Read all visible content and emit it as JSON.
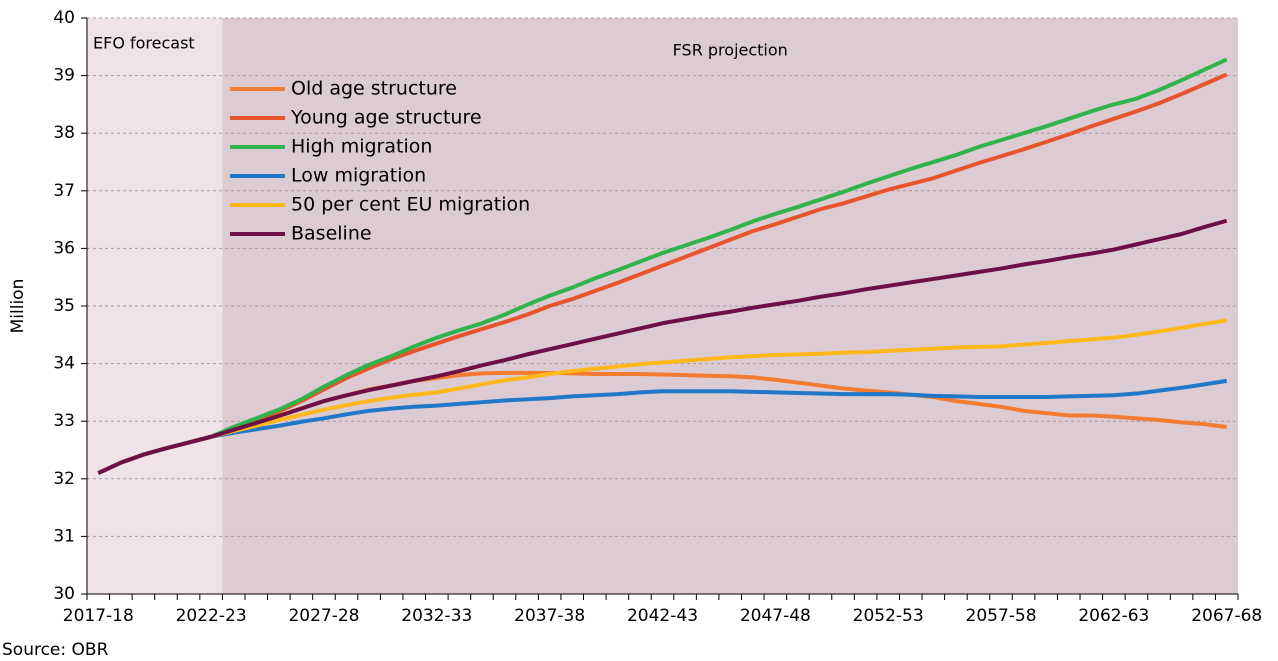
{
  "chart_data": {
    "type": "line",
    "y_label": "Million",
    "source": "Source: OBR",
    "regions": [
      {
        "label": "EFO forecast",
        "color": "#efe3e9"
      },
      {
        "label": "FSR projection",
        "color": "#dccbd3"
      }
    ],
    "categories": [
      "2017-18",
      null,
      null,
      null,
      null,
      "2022-23",
      null,
      null,
      null,
      null,
      "2027-28",
      null,
      null,
      null,
      null,
      "2032-33",
      null,
      null,
      null,
      null,
      "2037-38",
      null,
      null,
      null,
      null,
      "2042-43",
      null,
      null,
      null,
      null,
      "2047-48",
      null,
      null,
      null,
      null,
      "2052-53",
      null,
      null,
      null,
      null,
      "2057-58",
      null,
      null,
      null,
      null,
      "2062-63",
      null,
      null,
      null,
      null,
      "2067-68"
    ],
    "ylim": [
      30,
      40
    ],
    "yticks": [
      30,
      31,
      32,
      33,
      34,
      35,
      36,
      37,
      38,
      39,
      40
    ],
    "series": [
      {
        "name": "Old age structure",
        "color": "#f47c30",
        "values": [
          32.1,
          32.28,
          32.42,
          32.53,
          32.63,
          32.73,
          32.85,
          32.97,
          33.1,
          33.22,
          33.35,
          33.45,
          33.55,
          33.62,
          33.7,
          33.75,
          33.8,
          33.83,
          33.84,
          33.84,
          33.84,
          33.83,
          33.82,
          33.82,
          33.82,
          33.81,
          33.8,
          33.79,
          33.78,
          33.76,
          33.72,
          33.67,
          33.62,
          33.57,
          33.53,
          33.5,
          33.46,
          33.42,
          33.35,
          33.3,
          33.25,
          33.18,
          33.14,
          33.1,
          33.1,
          33.08,
          33.05,
          33.02,
          32.98,
          32.95,
          32.9
        ]
      },
      {
        "name": "Young age structure",
        "color": "#e8542c",
        "values": [
          32.1,
          32.28,
          32.42,
          32.53,
          32.63,
          32.73,
          32.88,
          33.02,
          33.17,
          33.35,
          33.55,
          33.75,
          33.92,
          34.08,
          34.22,
          34.35,
          34.48,
          34.6,
          34.72,
          34.85,
          35.0,
          35.12,
          35.26,
          35.4,
          35.55,
          35.7,
          35.85,
          36.0,
          36.15,
          36.3,
          36.42,
          36.55,
          36.68,
          36.78,
          36.9,
          37.02,
          37.12,
          37.22,
          37.35,
          37.48,
          37.6,
          37.72,
          37.85,
          37.98,
          38.12,
          38.25,
          38.38,
          38.52,
          38.68,
          38.85,
          39.02
        ]
      },
      {
        "name": "High migration",
        "color": "#2fb34a",
        "values": [
          32.1,
          32.28,
          32.42,
          32.53,
          32.63,
          32.73,
          32.9,
          33.05,
          33.2,
          33.38,
          33.6,
          33.8,
          33.98,
          34.13,
          34.3,
          34.45,
          34.58,
          34.7,
          34.85,
          35.02,
          35.18,
          35.32,
          35.48,
          35.62,
          35.77,
          35.92,
          36.05,
          36.18,
          36.32,
          36.47,
          36.6,
          36.72,
          36.85,
          36.98,
          37.12,
          37.25,
          37.38,
          37.5,
          37.62,
          37.76,
          37.88,
          38.0,
          38.12,
          38.25,
          38.38,
          38.5,
          38.6,
          38.75,
          38.92,
          39.1,
          39.28
        ]
      },
      {
        "name": "Low migration",
        "color": "#1f78c8",
        "values": [
          32.1,
          32.28,
          32.42,
          32.53,
          32.63,
          32.73,
          32.8,
          32.86,
          32.92,
          32.99,
          33.05,
          33.12,
          33.18,
          33.22,
          33.25,
          33.27,
          33.3,
          33.33,
          33.36,
          33.38,
          33.4,
          33.43,
          33.45,
          33.47,
          33.5,
          33.52,
          33.52,
          33.52,
          33.52,
          33.51,
          33.5,
          33.49,
          33.48,
          33.47,
          33.47,
          33.47,
          33.46,
          33.44,
          33.43,
          33.42,
          33.42,
          33.42,
          33.42,
          33.43,
          33.44,
          33.45,
          33.48,
          33.53,
          33.58,
          33.64,
          33.7
        ]
      },
      {
        "name": "50 per cent EU migration",
        "color": "#ffb81c",
        "values": [
          32.1,
          32.28,
          32.42,
          32.53,
          32.63,
          32.73,
          32.83,
          32.92,
          33.02,
          33.11,
          33.2,
          33.28,
          33.35,
          33.41,
          33.46,
          33.5,
          33.57,
          33.64,
          33.71,
          33.76,
          33.82,
          33.87,
          33.91,
          33.95,
          33.99,
          34.02,
          34.05,
          34.08,
          34.11,
          34.13,
          34.15,
          34.16,
          34.17,
          34.19,
          34.2,
          34.22,
          34.24,
          34.26,
          34.28,
          34.29,
          34.3,
          34.33,
          34.36,
          34.39,
          34.42,
          34.45,
          34.5,
          34.56,
          34.62,
          34.69,
          34.75
        ]
      },
      {
        "name": "Baseline",
        "color": "#6e0f45",
        "values": [
          32.1,
          32.28,
          32.42,
          32.53,
          32.63,
          32.73,
          32.85,
          32.97,
          33.09,
          33.22,
          33.35,
          33.45,
          33.54,
          33.62,
          33.7,
          33.78,
          33.87,
          33.97,
          34.06,
          34.16,
          34.25,
          34.34,
          34.43,
          34.52,
          34.61,
          34.7,
          34.77,
          34.84,
          34.9,
          34.97,
          35.03,
          35.09,
          35.16,
          35.22,
          35.29,
          35.35,
          35.41,
          35.47,
          35.53,
          35.59,
          35.65,
          35.72,
          35.78,
          35.85,
          35.91,
          35.98,
          36.07,
          36.16,
          36.25,
          36.37,
          36.48
        ]
      }
    ]
  }
}
